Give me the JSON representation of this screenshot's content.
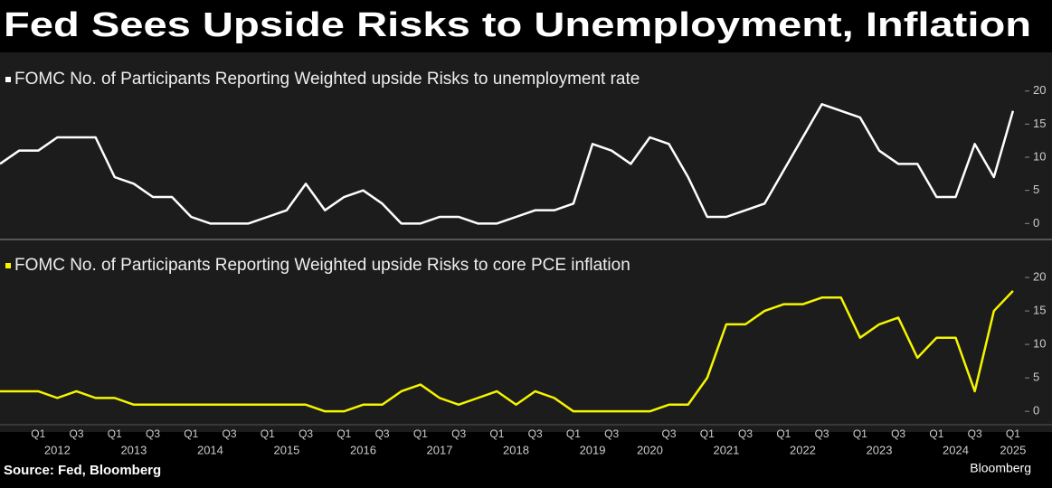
{
  "title": "Fed Sees Upside Risks to Unemployment, Inflation",
  "source": "Source: Fed, Bloomberg",
  "brand": "Bloomberg",
  "chart_data": [
    {
      "type": "line",
      "series": [
        {
          "name": "FOMC No. of Participants Reporting Weighted upside Risks to unemployment rate",
          "color": "#ffffff",
          "values": [
            9,
            11,
            11,
            13,
            13,
            13,
            7,
            6,
            4,
            4,
            1,
            0,
            0,
            0,
            1,
            2,
            6,
            2,
            4,
            5,
            3,
            0,
            0,
            1,
            1,
            0,
            0,
            1,
            2,
            2,
            3,
            12,
            11,
            9,
            13,
            12,
            7,
            1,
            1,
            2,
            3,
            8,
            13,
            18,
            17,
            16,
            11,
            9,
            9,
            4,
            4,
            12,
            7,
            17
          ]
        }
      ],
      "ylim": [
        -2,
        25
      ],
      "yticks": [
        0,
        5,
        10,
        15,
        20
      ]
    },
    {
      "type": "line",
      "categories": [
        null,
        null,
        "Q1",
        null,
        "Q3",
        null,
        "Q1",
        null,
        "Q3",
        null,
        "Q1",
        null,
        "Q3",
        null,
        "Q1",
        null,
        "Q3",
        null,
        "Q1",
        null,
        "Q3",
        null,
        "Q1",
        null,
        "Q3",
        null,
        "Q1",
        null,
        "Q3",
        null,
        "Q1",
        null,
        "Q3",
        null,
        null,
        "Q3",
        null,
        "Q1",
        null,
        "Q3",
        null,
        "Q1",
        null,
        "Q3",
        null,
        "Q1",
        null,
        "Q3",
        null,
        "Q1",
        null,
        "Q3",
        null,
        "Q1"
      ],
      "year_labels": [
        null,
        null,
        null,
        "2012",
        null,
        null,
        null,
        "2013",
        null,
        null,
        null,
        "2014",
        null,
        null,
        null,
        "2015",
        null,
        null,
        null,
        "2016",
        null,
        null,
        null,
        "2017",
        null,
        null,
        null,
        "2018",
        null,
        null,
        null,
        "2019",
        null,
        null,
        "2020",
        null,
        null,
        null,
        "2021",
        null,
        null,
        null,
        "2022",
        null,
        null,
        null,
        "2023",
        null,
        null,
        null,
        "2024",
        null,
        null,
        "2025"
      ],
      "series": [
        {
          "name": "FOMC No. of Participants Reporting Weighted upside Risks to core PCE inflation",
          "color": "#f5f500",
          "values": [
            3,
            3,
            3,
            2,
            3,
            2,
            2,
            1,
            1,
            1,
            1,
            1,
            1,
            1,
            1,
            1,
            1,
            0,
            0,
            1,
            1,
            3,
            4,
            2,
            1,
            2,
            3,
            1,
            3,
            2,
            0,
            0,
            0,
            0,
            0,
            1,
            1,
            5,
            13,
            13,
            15,
            16,
            16,
            17,
            17,
            11,
            13,
            14,
            8,
            11,
            11,
            3,
            15,
            18
          ]
        }
      ],
      "ylim": [
        -2,
        25
      ],
      "yticks": [
        0,
        5,
        10,
        15,
        20
      ]
    }
  ]
}
